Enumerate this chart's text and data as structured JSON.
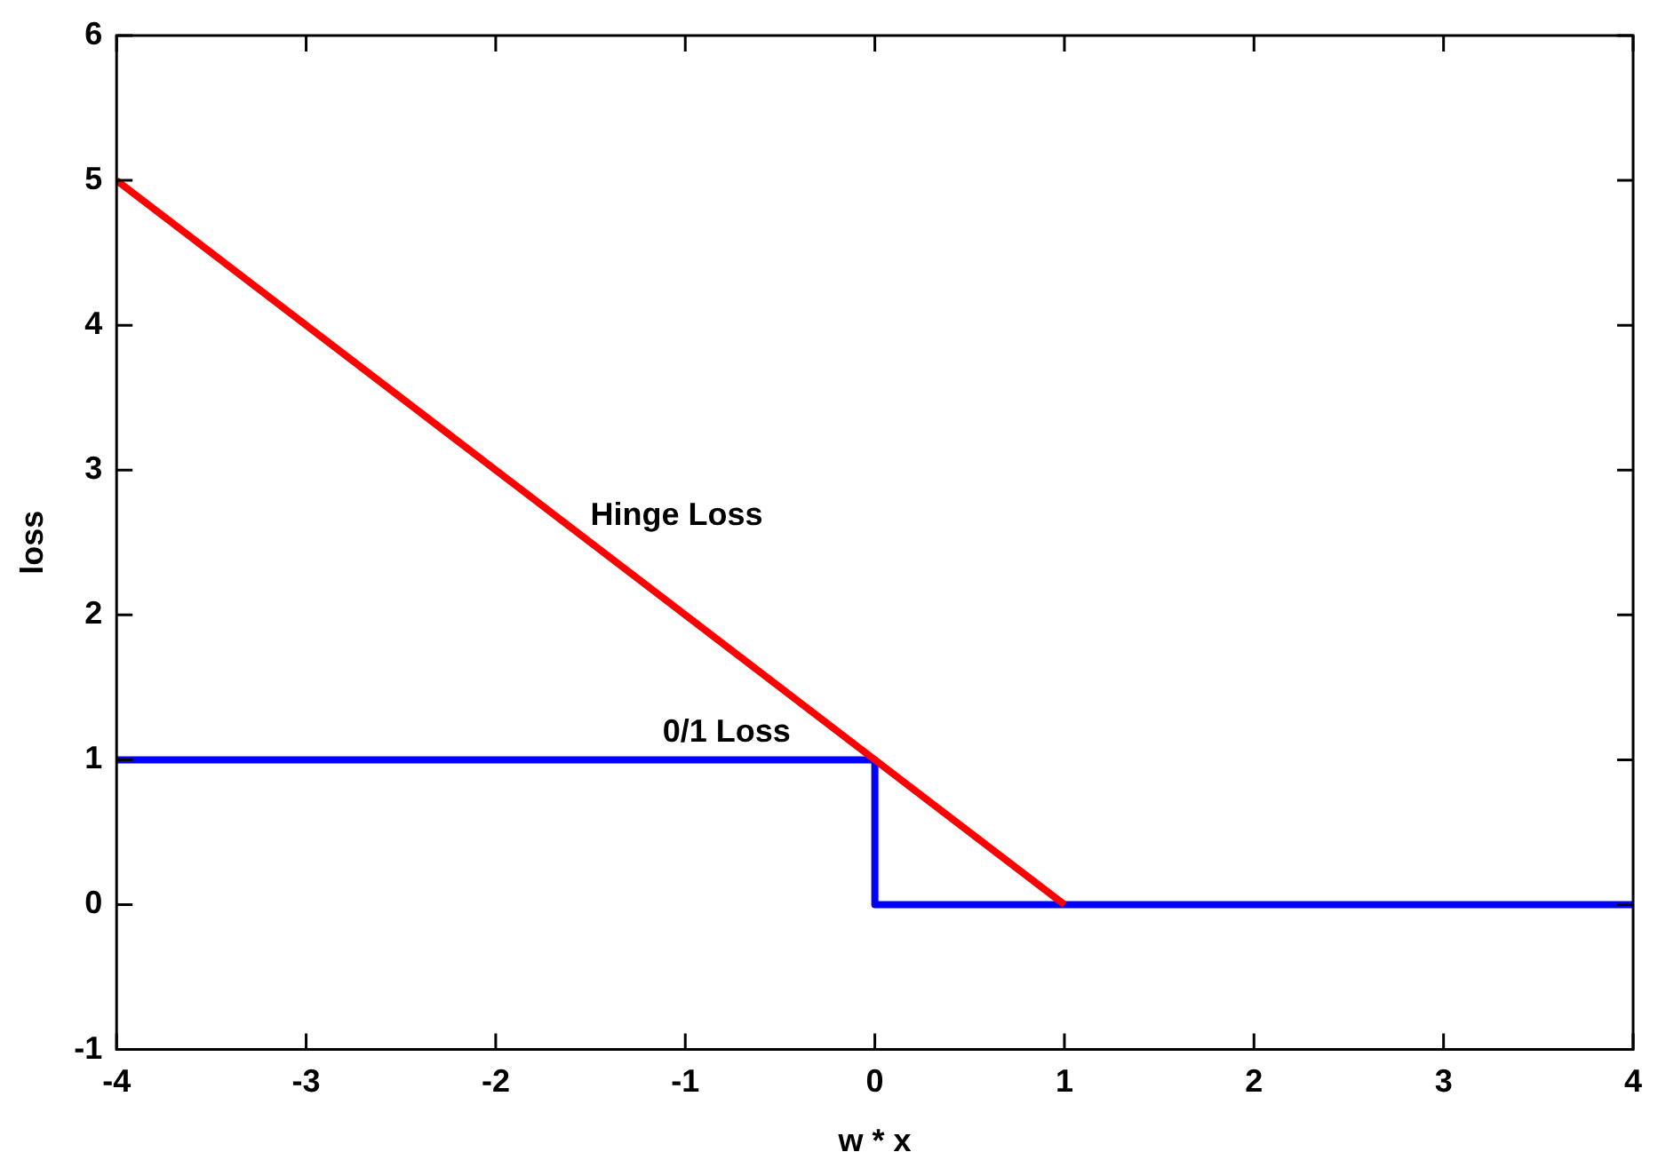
{
  "chart_data": {
    "type": "line",
    "xlabel": "w * x",
    "ylabel": "loss",
    "xlim": [
      -4,
      4
    ],
    "xticks": [
      -4,
      -3,
      -2,
      -1,
      0,
      1,
      2,
      3,
      4
    ],
    "ylim": [
      -1,
      6
    ],
    "yticks": [
      -1,
      0,
      1,
      2,
      3,
      4,
      5,
      6
    ],
    "grid": false,
    "legend": false,
    "marker": "none",
    "line_style": "solid",
    "series": [
      {
        "name": "Hinge Loss",
        "color": "#ff0000",
        "x": [
          -4,
          1
        ],
        "values": [
          5,
          0
        ]
      },
      {
        "name": "0/1 Loss",
        "type": "step",
        "color": "#0000ff",
        "x": [
          -4,
          0,
          4
        ],
        "values": [
          1,
          0,
          0
        ]
      }
    ]
  }
}
